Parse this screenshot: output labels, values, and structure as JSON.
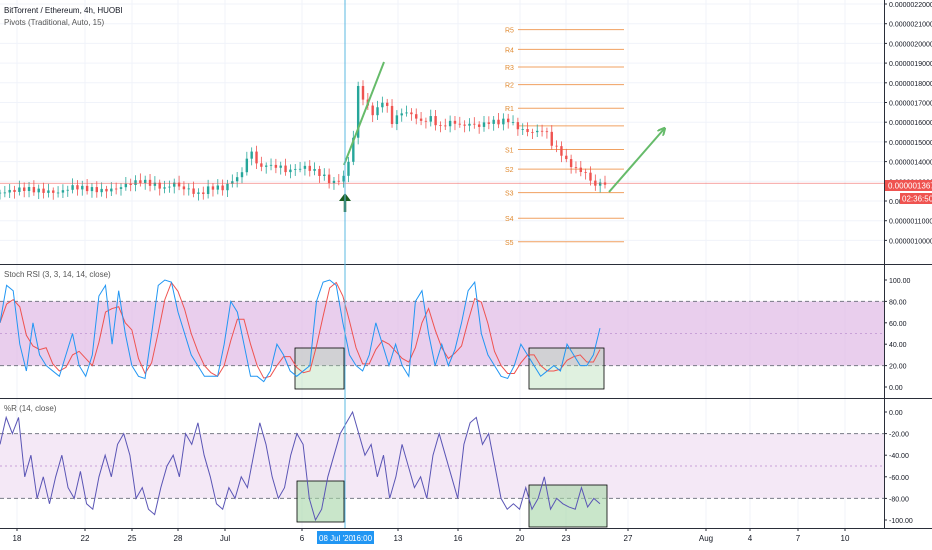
{
  "header": {
    "symbol_title": "BitTorrent / Ethereum, 4h, HUOBI",
    "pivots_label": "Pivots (Traditional, Auto, 15)"
  },
  "panels": {
    "stoch_label": "Stoch RSI (3, 3, 14, 14, close)",
    "wr_label": "%R (14, close)"
  },
  "price_tag": {
    "value": "0.0000013679",
    "countdown": "02:36:50"
  },
  "crosshair": {
    "date_label": "08 Jul '20",
    "time_label": "16:00"
  },
  "colors": {
    "candle_up": "#26a69a",
    "candle_down": "#ef5350",
    "pivot": "#f0a060",
    "pivot_label": "#e08a30",
    "stoch_k": "#2196f3",
    "stoch_d": "#ef5350",
    "band_fill": "#e1bee7",
    "wr_line": "#5a55b5",
    "annotation_green": "#66bb6a",
    "crosshair": "#5bb8e0",
    "price_line": "#ef5350"
  },
  "chart_data": [
    {
      "type": "line",
      "title": "BitTorrent / Ethereum, 4h, HUOBI",
      "x_ticks": [
        "18",
        "22",
        "25",
        "28",
        "Jul",
        "6",
        "13",
        "16",
        "20",
        "23",
        "27",
        "Aug",
        "4",
        "7",
        "10"
      ],
      "y_ticks": [
        "0.0000022000",
        "0.0000021000",
        "0.0000020000",
        "0.0000019000",
        "0.0000018000",
        "0.0000017000",
        "0.0000016000",
        "0.0000015000",
        "0.0000014000",
        "0.0000013000",
        "0.0000012000",
        "0.0000011000",
        "0.0000010000"
      ],
      "ylim": [
        9.5e-07,
        2.26e-06
      ],
      "close_points": [
        [
          0,
          1.32
        ],
        [
          10,
          1.34
        ],
        [
          16,
          1.33
        ],
        [
          24,
          1.32
        ],
        [
          30,
          1.35
        ],
        [
          36,
          1.34
        ],
        [
          42,
          1.33
        ],
        [
          48,
          1.34
        ],
        [
          52,
          1.36
        ],
        [
          58,
          1.38
        ],
        [
          64,
          1.36
        ],
        [
          68,
          1.34
        ],
        [
          72,
          1.37
        ],
        [
          74,
          1.35
        ],
        [
          79,
          1.33
        ],
        [
          82,
          1.31
        ],
        [
          86,
          1.34
        ],
        [
          89,
          1.35
        ],
        [
          92,
          1.34
        ],
        [
          96,
          1.38
        ],
        [
          100,
          1.42
        ],
        [
          102,
          1.5
        ],
        [
          103,
          1.57
        ],
        [
          104,
          1.52
        ],
        [
          106,
          1.48
        ],
        [
          108,
          1.44
        ],
        [
          110,
          1.47
        ],
        [
          112,
          1.45
        ],
        [
          115,
          1.46
        ],
        [
          118,
          1.43
        ],
        [
          122,
          1.44
        ],
        [
          126,
          1.45
        ],
        [
          130,
          1.43
        ],
        [
          133,
          1.41
        ],
        [
          136,
          1.38
        ],
        [
          138,
          1.37
        ],
        [
          142,
          1.4
        ],
        [
          144,
          1.48
        ],
        [
          146,
          1.6
        ],
        [
          147,
          1.75
        ],
        [
          148,
          1.86
        ],
        [
          149,
          1.82
        ],
        [
          151,
          1.78
        ],
        [
          153,
          1.73
        ],
        [
          155,
          1.72
        ],
        [
          158,
          1.79
        ],
        [
          160,
          1.75
        ],
        [
          162,
          1.68
        ],
        [
          166,
          1.73
        ],
        [
          170,
          1.72
        ],
        [
          174,
          1.68
        ],
        [
          178,
          1.7
        ],
        [
          182,
          1.65
        ],
        [
          184,
          1.67
        ],
        [
          188,
          1.68
        ],
        [
          190,
          1.66
        ],
        [
          194,
          1.67
        ],
        [
          198,
          1.66
        ],
        [
          202,
          1.68
        ],
        [
          206,
          1.68
        ],
        [
          210,
          1.69
        ],
        [
          214,
          1.65
        ],
        [
          218,
          1.63
        ],
        [
          222,
          1.63
        ],
        [
          224,
          1.64
        ],
        [
          226,
          1.62
        ],
        [
          228,
          1.57
        ],
        [
          232,
          1.52
        ],
        [
          234,
          1.48
        ],
        [
          238,
          1.44
        ],
        [
          242,
          1.42
        ],
        [
          244,
          1.38
        ],
        [
          246,
          1.36
        ],
        [
          250,
          1.37
        ]
      ],
      "pivots": [
        {
          "name": "R5",
          "value": 2.15e-06
        },
        {
          "name": "R4",
          "value": 2.05e-06
        },
        {
          "name": "R3",
          "value": 1.96e-06
        },
        {
          "name": "R2",
          "value": 1.87e-06
        },
        {
          "name": "R1",
          "value": 1.75e-06
        },
        {
          "name": "P",
          "value": 1.66e-06
        },
        {
          "name": "S1",
          "value": 1.54e-06
        },
        {
          "name": "S2",
          "value": 1.44e-06
        },
        {
          "name": "S3",
          "value": 1.32e-06
        },
        {
          "name": "S4",
          "value": 1.19e-06
        },
        {
          "name": "S5",
          "value": 1.07e-06
        }
      ],
      "last_price": 1.3679e-06
    },
    {
      "type": "line",
      "title": "Stoch RSI (3, 3, 14, 14, close)",
      "y_ticks": [
        "100.00",
        "80.00",
        "60.00",
        "40.00",
        "20.00",
        "0.00"
      ],
      "ylim": [
        -8,
        107
      ],
      "band": [
        20,
        80
      ],
      "series": [
        {
          "name": "K",
          "values": [
            60,
            95,
            90,
            40,
            15,
            60,
            30,
            20,
            15,
            10,
            30,
            50,
            20,
            10,
            30,
            85,
            95,
            40,
            90,
            50,
            20,
            10,
            8,
            50,
            95,
            100,
            98,
            70,
            50,
            30,
            20,
            10,
            10,
            10,
            40,
            80,
            70,
            40,
            10,
            10,
            5,
            15,
            40,
            30,
            15,
            10,
            15,
            20,
            80,
            98,
            100,
            95,
            60,
            30,
            20,
            15,
            30,
            60,
            40,
            20,
            40,
            20,
            10,
            80,
            90,
            50,
            20,
            40,
            20,
            35,
            60,
            90,
            98,
            50,
            30,
            20,
            10,
            8,
            20,
            40,
            30,
            20,
            10,
            15,
            20,
            15,
            40,
            30,
            20,
            20,
            30,
            55
          ]
        }
      ]
    },
    {
      "type": "line",
      "title": "%R (14, close)",
      "y_ticks": [
        "0.00",
        "-20.00",
        "-40.00",
        "-60.00",
        "-80.00",
        "-100.00"
      ],
      "ylim": [
        -109,
        6
      ],
      "band": [
        -80,
        -20
      ],
      "series": [
        {
          "name": "%R",
          "values": [
            -30,
            -5,
            -20,
            -5,
            -60,
            -40,
            -80,
            -60,
            -85,
            -60,
            -40,
            -70,
            -80,
            -55,
            -85,
            -90,
            -60,
            -40,
            -60,
            -30,
            -20,
            -40,
            -80,
            -70,
            -90,
            -95,
            -70,
            -50,
            -40,
            -60,
            -20,
            -30,
            -10,
            -40,
            -60,
            -85,
            -90,
            -70,
            -80,
            -60,
            -70,
            -40,
            -10,
            -30,
            -60,
            -80,
            -70,
            -40,
            -20,
            -30,
            -80,
            -100,
            -90,
            -60,
            -40,
            -20,
            -10,
            0,
            -20,
            -40,
            -30,
            -60,
            -40,
            -80,
            -60,
            -30,
            -50,
            -70,
            -60,
            -80,
            -40,
            -20,
            -40,
            -60,
            -80,
            -30,
            -10,
            -5,
            -30,
            -20,
            -50,
            -80,
            -90,
            -85,
            -90,
            -70,
            -90,
            -80,
            -60,
            -90,
            -80,
            -85,
            -88,
            -90,
            -70,
            -88,
            -80,
            -85
          ]
        }
      ]
    }
  ]
}
